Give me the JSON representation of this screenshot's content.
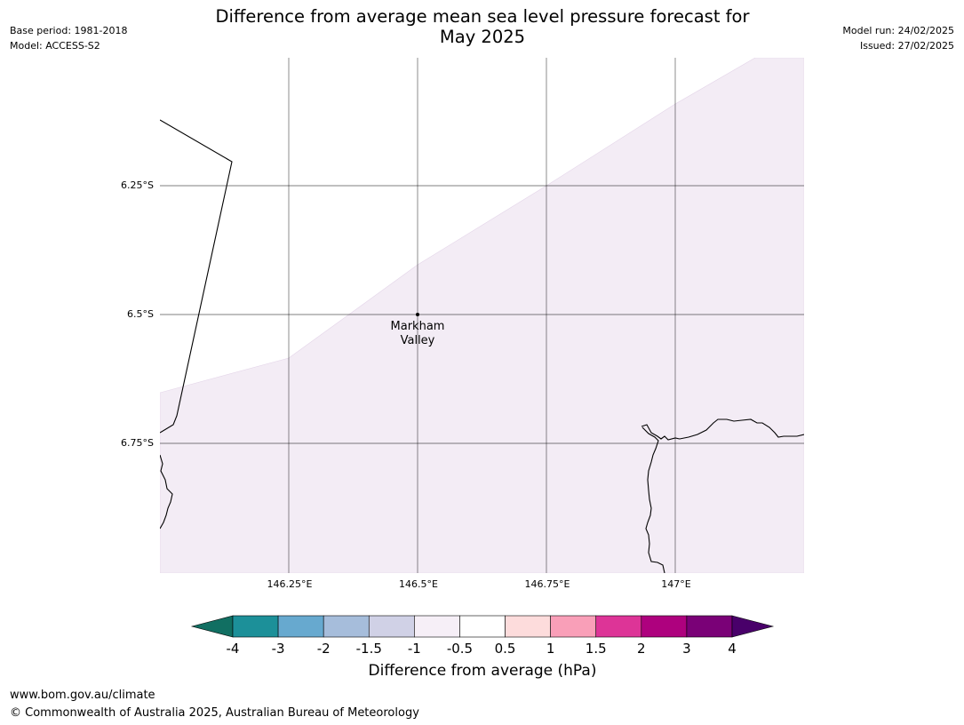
{
  "header": {
    "base_period": "Base period: 1981-2018",
    "model": "Model: ACCESS-S2",
    "model_run": "Model run: 24/02/2025",
    "issued": "Issued: 27/02/2025",
    "title_line1": "Difference from average mean sea level pressure forecast for",
    "title_line2": "May 2025"
  },
  "map": {
    "lat_labels": [
      "6.25°S",
      "6.5°S",
      "6.75°S"
    ],
    "lon_labels": [
      "146.25°E",
      "146.5°E",
      "146.75°E",
      "147°E"
    ],
    "place": {
      "name_line1": "Markham",
      "name_line2": "Valley",
      "lat": -6.5,
      "lon": 146.5
    },
    "shaded_category": "0.5 to -0.5 hPa band (light lavender)",
    "shading_color": "#f3ecf5",
    "coastline_color": "#000000",
    "gridline_color": "#000000"
  },
  "colorbar": {
    "label": "Difference from average (hPa)",
    "ticks": [
      "-4",
      "-3",
      "-2",
      "-1.5",
      "-1",
      "-0.5",
      "0.5",
      "1",
      "1.5",
      "2",
      "3",
      "4"
    ],
    "colors": [
      "#116f62",
      "#1c9099",
      "#67a9cf",
      "#a6bddb",
      "#d0d1e6",
      "#f6eff7",
      "#ffffff",
      "#fddcdc",
      "#f99fb8",
      "#dd3497",
      "#ae017e",
      "#7a0177",
      "#49006a"
    ]
  },
  "footer": {
    "url": "www.bom.gov.au/climate",
    "copyright": "© Commonwealth of Australia 2025, Australian Bureau of Meteorology"
  }
}
